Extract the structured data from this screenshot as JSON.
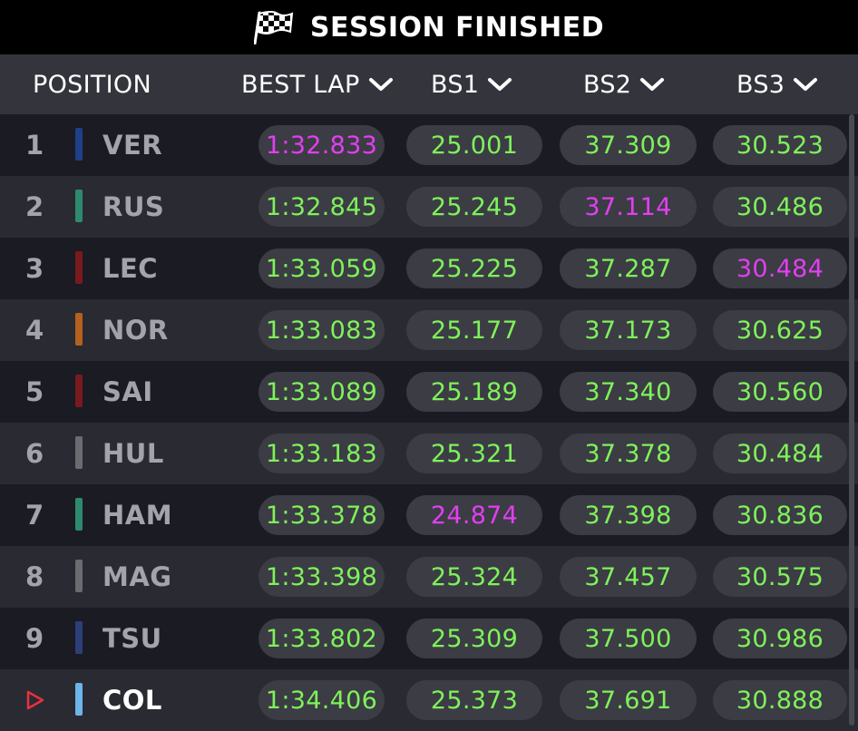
{
  "title": "SESSION FINISHED",
  "columns": {
    "position": "POSITION",
    "best_lap": "BEST LAP",
    "bs1": "BS1",
    "bs2": "BS2",
    "bs3": "BS3"
  },
  "colors": {
    "personal_best": "#7ef25a",
    "overall_best": "#e23ff0",
    "selected_marker": "#e8313a"
  },
  "rows": [
    {
      "pos": "1",
      "code": "VER",
      "team_color": "#1e3f8a",
      "best_lap": "1:32.833",
      "bs1": "25.001",
      "bs2": "37.309",
      "bs3": "30.523",
      "best_lap_color": "#e23ff0",
      "bs1_color": "#7ef25a",
      "bs2_color": "#7ef25a",
      "bs3_color": "#7ef25a"
    },
    {
      "pos": "2",
      "code": "RUS",
      "team_color": "#2e8a6e",
      "best_lap": "1:32.845",
      "bs1": "25.245",
      "bs2": "37.114",
      "bs3": "30.486",
      "best_lap_color": "#7ef25a",
      "bs1_color": "#7ef25a",
      "bs2_color": "#e23ff0",
      "bs3_color": "#7ef25a"
    },
    {
      "pos": "3",
      "code": "LEC",
      "team_color": "#7a1a1e",
      "best_lap": "1:33.059",
      "bs1": "25.225",
      "bs2": "37.287",
      "bs3": "30.484",
      "best_lap_color": "#7ef25a",
      "bs1_color": "#7ef25a",
      "bs2_color": "#7ef25a",
      "bs3_color": "#e23ff0"
    },
    {
      "pos": "4",
      "code": "NOR",
      "team_color": "#b5611d",
      "best_lap": "1:33.083",
      "bs1": "25.177",
      "bs2": "37.173",
      "bs3": "30.625",
      "best_lap_color": "#7ef25a",
      "bs1_color": "#7ef25a",
      "bs2_color": "#7ef25a",
      "bs3_color": "#7ef25a"
    },
    {
      "pos": "5",
      "code": "SAI",
      "team_color": "#7a1a1e",
      "best_lap": "1:33.089",
      "bs1": "25.189",
      "bs2": "37.340",
      "bs3": "30.560",
      "best_lap_color": "#7ef25a",
      "bs1_color": "#7ef25a",
      "bs2_color": "#7ef25a",
      "bs3_color": "#7ef25a"
    },
    {
      "pos": "6",
      "code": "HUL",
      "team_color": "#6b6b70",
      "best_lap": "1:33.183",
      "bs1": "25.321",
      "bs2": "37.378",
      "bs3": "30.484",
      "best_lap_color": "#7ef25a",
      "bs1_color": "#7ef25a",
      "bs2_color": "#7ef25a",
      "bs3_color": "#7ef25a"
    },
    {
      "pos": "7",
      "code": "HAM",
      "team_color": "#2e8a6e",
      "best_lap": "1:33.378",
      "bs1": "24.874",
      "bs2": "37.398",
      "bs3": "30.836",
      "best_lap_color": "#7ef25a",
      "bs1_color": "#e23ff0",
      "bs2_color": "#7ef25a",
      "bs3_color": "#7ef25a"
    },
    {
      "pos": "8",
      "code": "MAG",
      "team_color": "#6b6b70",
      "best_lap": "1:33.398",
      "bs1": "25.324",
      "bs2": "37.457",
      "bs3": "30.575",
      "best_lap_color": "#7ef25a",
      "bs1_color": "#7ef25a",
      "bs2_color": "#7ef25a",
      "bs3_color": "#7ef25a"
    },
    {
      "pos": "9",
      "code": "TSU",
      "team_color": "#2d3f7a",
      "best_lap": "1:33.802",
      "bs1": "25.309",
      "bs2": "37.500",
      "bs3": "30.986",
      "best_lap_color": "#7ef25a",
      "bs1_color": "#7ef25a",
      "bs2_color": "#7ef25a",
      "bs3_color": "#7ef25a"
    },
    {
      "pos": "",
      "code": "COL",
      "team_color": "#6cb6ea",
      "best_lap": "1:34.406",
      "bs1": "25.373",
      "bs2": "37.691",
      "bs3": "30.888",
      "best_lap_color": "#7ef25a",
      "bs1_color": "#7ef25a",
      "bs2_color": "#7ef25a",
      "bs3_color": "#7ef25a",
      "selected": true,
      "marker_icon": "play-triangle-outline-icon"
    }
  ]
}
